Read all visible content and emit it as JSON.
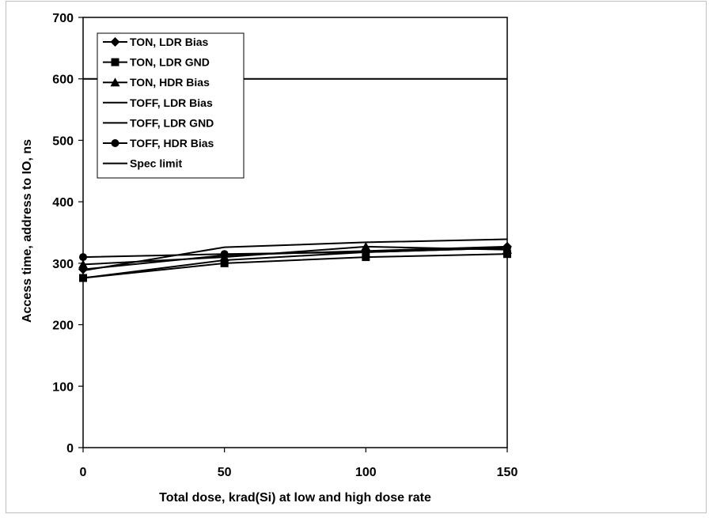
{
  "chart_data": {
    "type": "line",
    "xlabel": "Total dose, krad(Si) at low and high dose rate",
    "ylabel": "Access time, address to IO, ns",
    "xlim": [
      0,
      150
    ],
    "ylim": [
      0,
      700
    ],
    "x_ticks": [
      "0",
      "50",
      "100",
      "150"
    ],
    "y_ticks": [
      "0",
      "100",
      "200",
      "300",
      "400",
      "500",
      "600",
      "700"
    ],
    "grid": false,
    "legend_position": "top-left",
    "x": [
      0,
      50,
      100,
      150
    ],
    "series": [
      {
        "name": "TON, LDR Bias",
        "marker": "diamond",
        "values": [
          290,
          313,
          320,
          327
        ]
      },
      {
        "name": "TON, LDR GND",
        "marker": "square",
        "values": [
          276,
          300,
          310,
          315
        ]
      },
      {
        "name": "TON, HDR Bias",
        "marker": "triangle",
        "values": [
          298,
          310,
          327,
          322
        ]
      },
      {
        "name": "TOFF, LDR Bias",
        "marker": "none",
        "values": [
          276,
          305,
          318,
          325
        ]
      },
      {
        "name": "TOFF, LDR GND",
        "marker": "none",
        "values": [
          288,
          326,
          334,
          339
        ]
      },
      {
        "name": "TOFF, HDR Bias",
        "marker": "circle",
        "values": [
          310,
          315,
          318,
          325
        ]
      },
      {
        "name": "Spec limit",
        "marker": "none",
        "values": [
          600,
          600,
          600,
          600
        ]
      }
    ]
  }
}
